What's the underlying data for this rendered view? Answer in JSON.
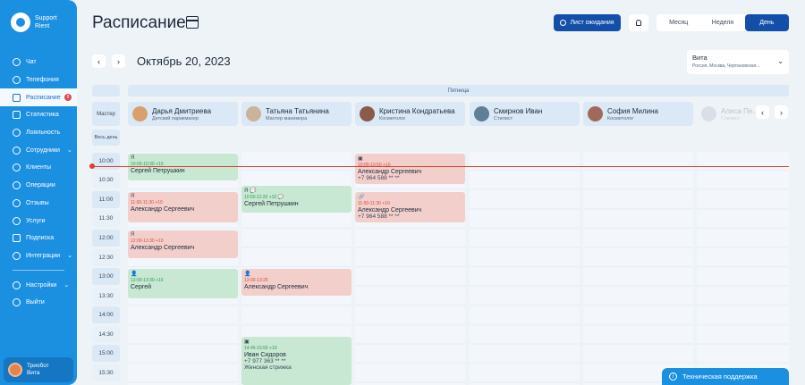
{
  "brand": {
    "line1": "Support",
    "line2": "Rient"
  },
  "sidebar": {
    "items": [
      {
        "label": "Чат",
        "name": "chat"
      },
      {
        "label": "Телефония",
        "name": "telephony"
      },
      {
        "label": "Расписание",
        "name": "schedule",
        "badge": "8",
        "active": true
      },
      {
        "label": "Статистика",
        "name": "statistics"
      },
      {
        "label": "Лояльность",
        "name": "loyalty"
      },
      {
        "label": "Сотрудники",
        "name": "employees",
        "chevron": true
      },
      {
        "label": "Клиенты",
        "name": "clients"
      },
      {
        "label": "Операции",
        "name": "operations"
      },
      {
        "label": "Отзывы",
        "name": "reviews"
      },
      {
        "label": "Услуги",
        "name": "services"
      },
      {
        "label": "Подписка",
        "name": "subscription"
      },
      {
        "label": "Интеграции",
        "name": "integrations",
        "chevron": true
      }
    ],
    "bottom_items": [
      {
        "label": "Настройки",
        "name": "settings",
        "chevron": true
      },
      {
        "label": "Выйти",
        "name": "logout"
      }
    ],
    "user": {
      "name": "Триобот",
      "sub": "Вита"
    }
  },
  "header": {
    "title": "Расписание",
    "waitlist_label": "Лист ожидания",
    "views": [
      {
        "label": "Месяц"
      },
      {
        "label": "Неделя"
      },
      {
        "label": "День",
        "active": true
      }
    ],
    "date": "Октябрь 20, 2023",
    "branch": {
      "name": "Вита",
      "address": "Россия, Москва, Чертановская..."
    }
  },
  "grid": {
    "day_label": "Пятница",
    "master_label": "Мастер",
    "allday_label": "Весь день",
    "masters": [
      {
        "name": "Дарья Дмитриева",
        "role": "Детский парикмахер"
      },
      {
        "name": "Татьяна Татьянина",
        "role": "Мастер маникюра"
      },
      {
        "name": "Кристина Кондратьева",
        "role": "Косметолог"
      },
      {
        "name": "Смирнов Иван",
        "role": "Стилист"
      },
      {
        "name": "София Милина",
        "role": "Косметолог"
      },
      {
        "name": "Алиса Пе...",
        "role": "Стилист"
      }
    ],
    "slots": [
      "10:00",
      "10:30",
      "11:00",
      "11:30",
      "12:00",
      "12:30",
      "13:00",
      "13:30",
      "14:00",
      "14:30",
      "15:00",
      "15:30"
    ],
    "appointments": [
      {
        "icon": "Я",
        "time": "10:00-10:30 +10",
        "client": "Сергей Петрушкин",
        "color": "green"
      },
      {
        "icon": "Я",
        "time": "11:00-11:30 +10",
        "client": "Александр Сергеевич",
        "color": "red"
      },
      {
        "icon": "Я",
        "time": "12:00-12:30 +10",
        "client": "Александр Сергеевич",
        "color": "red"
      },
      {
        "icon": "👤",
        "time": "13:00-13:30 +10",
        "client": "Сергей",
        "color": "green"
      },
      {
        "icon": "Я 💬",
        "time": "10:50-11:20 +10 💬",
        "client": "Сергей Петрушкин",
        "color": "green"
      },
      {
        "icon": "👤",
        "time": "13:00-13:25",
        "client": "Александр Сергеевич",
        "color": "red"
      },
      {
        "icon": "▣",
        "time": "14:45-15:55 +10",
        "client": "Иван Сидоров",
        "phone": "+7 977 363 ** **",
        "service": "Женская стрижка",
        "color": "green"
      },
      {
        "icon": "▣",
        "time": "10:00-10:50 +10",
        "client": "Александр Сергеевич",
        "phone": "+7 964 588 ** **",
        "color": "red"
      },
      {
        "icon": "🔗",
        "time": "11:00-11:30 +10",
        "client": "Александр Сергеевич",
        "phone": "+7 964 588 ** **",
        "color": "red"
      }
    ]
  },
  "support_label": "Техническая поддержка"
}
